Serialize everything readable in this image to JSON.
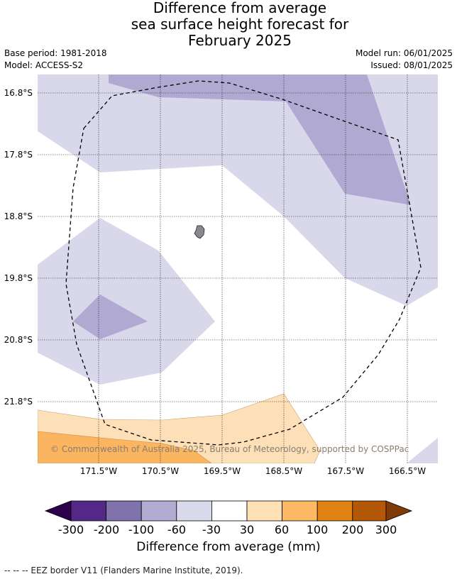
{
  "title": {
    "line1": "Difference from average",
    "line2": "sea surface height forecast for",
    "line3": "February 2025"
  },
  "meta": {
    "base_period": "Base period: 1981-2018",
    "model": "Model: ACCESS-S2",
    "model_run": "Model run: 06/01/2025",
    "issued": "Issued: 08/01/2025"
  },
  "map": {
    "lat_labels": [
      "16.8°S",
      "17.8°S",
      "18.8°S",
      "19.8°S",
      "20.8°S",
      "21.8°S"
    ],
    "lon_labels": [
      "171.5°W",
      "170.5°W",
      "169.5°W",
      "168.5°W",
      "167.5°W",
      "166.5°W"
    ],
    "copyright": "© Commonwealth of Australia 2025, Bureau of Meteorology, supported by COSPPac",
    "colors": {
      "pale_lavender": "#d8d8ea",
      "lavender": "#b0aad2",
      "pale_orange": "#fde0b8",
      "orange": "#fbb460",
      "land": "#888890"
    }
  },
  "colorbar": {
    "ticks": [
      "-300",
      "-200",
      "-100",
      "-60",
      "-30",
      "30",
      "60",
      "100",
      "200",
      "300"
    ],
    "colors": [
      "#2d004b",
      "#542788",
      "#8073ac",
      "#b2abd2",
      "#d8daeb",
      "#ffffff",
      "#fee0b6",
      "#fdb863",
      "#e08214",
      "#b35806",
      "#7f3b08"
    ],
    "label": "Difference from average (mm)"
  },
  "footnote": "--  --  -- EEZ border V11 (Flanders Marine Institute, 2019)."
}
